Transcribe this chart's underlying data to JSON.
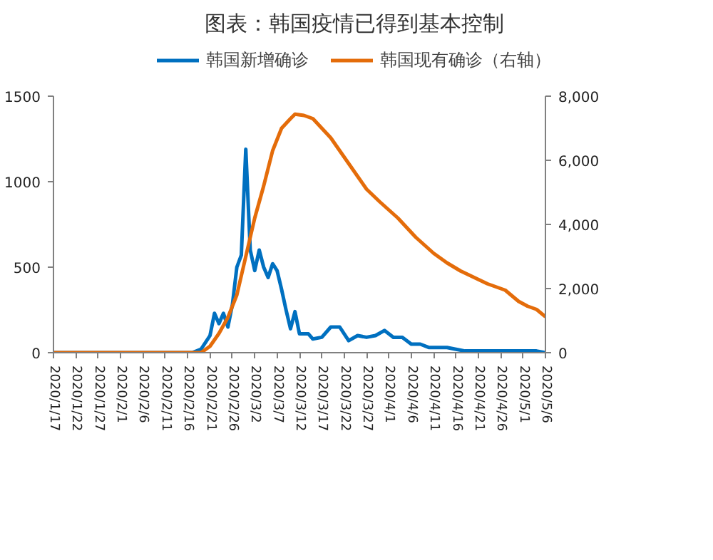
{
  "chart_data": {
    "type": "line",
    "title": "图表：韩国疫情已得到基本控制",
    "legend": "top",
    "grid": false,
    "marker": "none",
    "line_style": "solid",
    "xlim": [
      "2020-01-17",
      "2020-05-06"
    ],
    "xticks": [
      {
        "value": "2020-01-17",
        "label": "2020/1/17"
      },
      {
        "value": "2020-01-22",
        "label": "2020/1/22"
      },
      {
        "value": "2020-01-27",
        "label": "2020/1/27"
      },
      {
        "value": "2020-02-01",
        "label": "2020/2/1"
      },
      {
        "value": "2020-02-06",
        "label": "2020/2/6"
      },
      {
        "value": "2020-02-11",
        "label": "2020/2/11"
      },
      {
        "value": "2020-02-16",
        "label": "2020/2/16"
      },
      {
        "value": "2020-02-21",
        "label": "2020/2/21"
      },
      {
        "value": "2020-02-26",
        "label": "2020/2/26"
      },
      {
        "value": "2020-03-02",
        "label": "2020/3/2"
      },
      {
        "value": "2020-03-07",
        "label": "2020/3/7"
      },
      {
        "value": "2020-03-12",
        "label": "2020/3/12"
      },
      {
        "value": "2020-03-17",
        "label": "2020/3/17"
      },
      {
        "value": "2020-03-22",
        "label": "2020/3/22"
      },
      {
        "value": "2020-03-27",
        "label": "2020/3/27"
      },
      {
        "value": "2020-04-01",
        "label": "2020/4/1"
      },
      {
        "value": "2020-04-06",
        "label": "2020/4/6"
      },
      {
        "value": "2020-04-11",
        "label": "2020/4/11"
      },
      {
        "value": "2020-04-16",
        "label": "2020/4/16"
      },
      {
        "value": "2020-04-21",
        "label": "2020/4/21"
      },
      {
        "value": "2020-04-26",
        "label": "2020/4/26"
      },
      {
        "value": "2020-05-01",
        "label": "2020/5/1"
      },
      {
        "value": "2020-05-06",
        "label": "2020/5/6"
      }
    ],
    "ylim": [
      0,
      1500
    ],
    "yticks": [
      0,
      500,
      1000,
      1500
    ],
    "y2lim": [
      0,
      8000
    ],
    "y2ticks": [
      {
        "value": 0,
        "label": "0"
      },
      {
        "value": 2000,
        "label": "2,000"
      },
      {
        "value": 4000,
        "label": "4,000"
      },
      {
        "value": 6000,
        "label": "6,000"
      },
      {
        "value": 8000,
        "label": "8,000"
      }
    ],
    "series": [
      {
        "name": "韩国新增确诊",
        "color": "#0070c0",
        "x": [
          "2020-01-17",
          "2020-02-17",
          "2020-02-19",
          "2020-02-21",
          "2020-02-22",
          "2020-02-23",
          "2020-02-24",
          "2020-02-25",
          "2020-02-26",
          "2020-02-27",
          "2020-02-28",
          "2020-02-29",
          "2020-03-01",
          "2020-03-02",
          "2020-03-03",
          "2020-03-04",
          "2020-03-05",
          "2020-03-06",
          "2020-03-07",
          "2020-03-08",
          "2020-03-09",
          "2020-03-10",
          "2020-03-11",
          "2020-03-12",
          "2020-03-13",
          "2020-03-14",
          "2020-03-15",
          "2020-03-17",
          "2020-03-19",
          "2020-03-21",
          "2020-03-23",
          "2020-03-25",
          "2020-03-27",
          "2020-03-29",
          "2020-03-31",
          "2020-04-02",
          "2020-04-04",
          "2020-04-06",
          "2020-04-08",
          "2020-04-10",
          "2020-04-12",
          "2020-04-14",
          "2020-04-16",
          "2020-04-18",
          "2020-04-20",
          "2020-04-22",
          "2020-04-25",
          "2020-04-28",
          "2020-05-01",
          "2020-05-04",
          "2020-05-06"
        ],
        "values": [
          0,
          0,
          20,
          100,
          230,
          170,
          230,
          150,
          280,
          500,
          570,
          1190,
          600,
          480,
          600,
          500,
          440,
          520,
          480,
          370,
          250,
          140,
          240,
          110,
          110,
          110,
          80,
          90,
          150,
          150,
          70,
          100,
          90,
          100,
          130,
          90,
          90,
          50,
          50,
          30,
          30,
          30,
          20,
          10,
          10,
          10,
          10,
          10,
          10,
          10,
          0
        ]
      },
      {
        "name": "韩国现有确诊（右轴）",
        "color": "#e46c0a",
        "axis": "y2",
        "x": [
          "2020-01-17",
          "2020-02-19",
          "2020-02-21",
          "2020-02-23",
          "2020-02-25",
          "2020-02-27",
          "2020-02-29",
          "2020-03-02",
          "2020-03-04",
          "2020-03-06",
          "2020-03-08",
          "2020-03-10",
          "2020-03-11",
          "2020-03-13",
          "2020-03-15",
          "2020-03-17",
          "2020-03-19",
          "2020-03-21",
          "2020-03-23",
          "2020-03-25",
          "2020-03-27",
          "2020-03-30",
          "2020-04-01",
          "2020-04-03",
          "2020-04-05",
          "2020-04-07",
          "2020-04-09",
          "2020-04-11",
          "2020-04-14",
          "2020-04-17",
          "2020-04-20",
          "2020-04-23",
          "2020-04-27",
          "2020-04-30",
          "2020-05-02",
          "2020-05-04",
          "2020-05-06"
        ],
        "values": [
          0,
          0,
          200,
          600,
          1100,
          1800,
          3000,
          4200,
          5200,
          6300,
          7000,
          7300,
          7440,
          7400,
          7300,
          7000,
          6700,
          6300,
          5900,
          5500,
          5100,
          4700,
          4450,
          4200,
          3900,
          3600,
          3350,
          3100,
          2800,
          2550,
          2350,
          2150,
          1950,
          1600,
          1450,
          1350,
          1120
        ]
      }
    ]
  }
}
